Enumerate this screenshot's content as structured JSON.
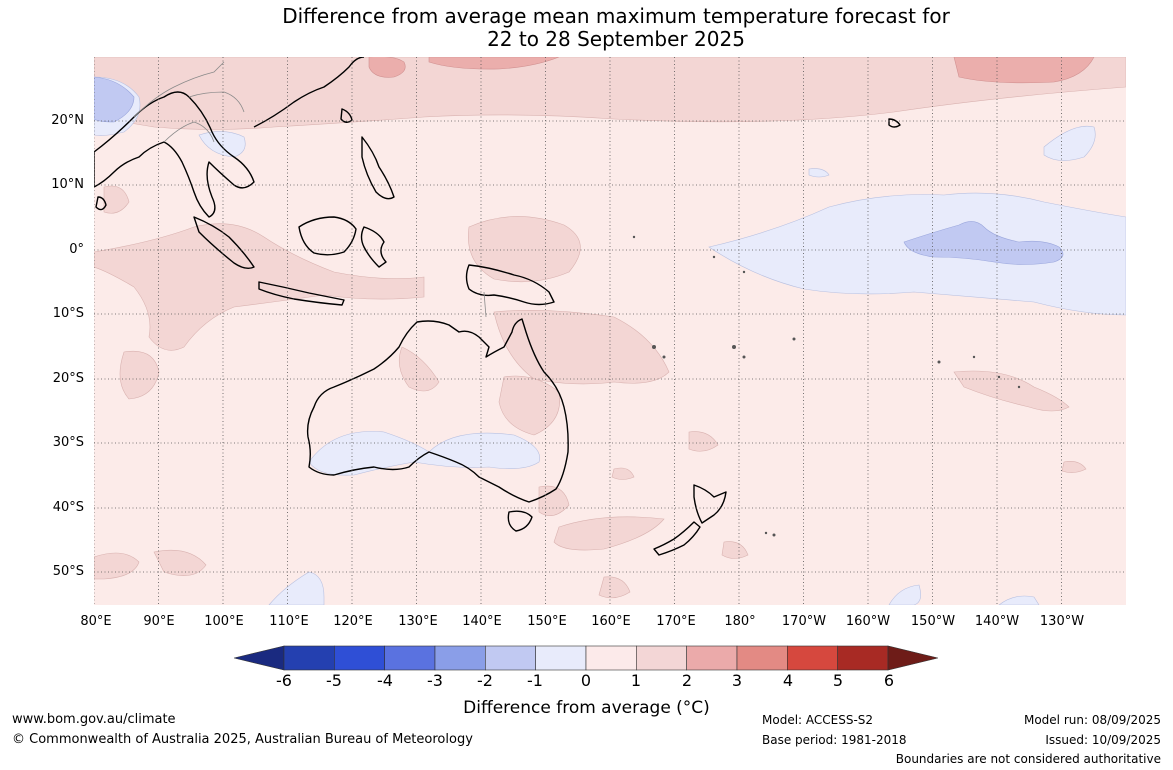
{
  "title": {
    "line1": "Difference from average mean maximum temperature forecast for",
    "line2": "22 to 28 September 2025"
  },
  "map": {
    "latitude_labels": [
      "20°N",
      "10°N",
      "0°",
      "10°S",
      "20°S",
      "30°S",
      "40°S",
      "50°S"
    ],
    "longitude_labels": [
      "80°E",
      "90°E",
      "100°E",
      "110°E",
      "120°E",
      "130°E",
      "140°E",
      "150°E",
      "160°E",
      "170°E",
      "180°",
      "170°W",
      "160°W",
      "150°W",
      "140°W",
      "130°W"
    ],
    "grid": true,
    "grid_style": "dotted"
  },
  "colorbar": {
    "ticks": [
      "-6",
      "-5",
      "-4",
      "-3",
      "-2",
      "-1",
      "0",
      "1",
      "2",
      "3",
      "4",
      "5",
      "6"
    ],
    "colors": [
      "#1a2a80",
      "#2440b0",
      "#2f4fd6",
      "#5a72e0",
      "#8a9ee8",
      "#c1c9f2",
      "#e8ebfb",
      "#fceaea",
      "#f3d6d6",
      "#ebaaaa",
      "#e38a84",
      "#d6483e",
      "#a82a24",
      "#6e1c18"
    ],
    "label": "Difference from average (°C)"
  },
  "footer": {
    "website": "www.bom.gov.au/climate",
    "copyright": "© Commonwealth of Australia 2025, Australian Bureau of Meteorology",
    "model": "Model: ACCESS-S2",
    "base_period": "Base period: 1981-2018",
    "model_run": "Model run: 08/09/2025",
    "issued": "Issued: 10/09/2025",
    "boundaries": "Boundaries are not considered authoritative"
  }
}
